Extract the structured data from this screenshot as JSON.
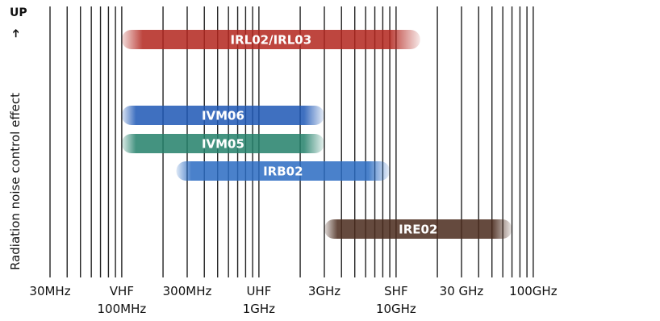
{
  "chart_data": {
    "type": "range-bar",
    "ylabel": "Radiation noise control effect",
    "up_label": "UP",
    "up_arrow": "➔",
    "x_scale": "log",
    "x_unit": "Hz",
    "xlim": [
      30000000,
      200000000000
    ],
    "tick_labels_row1": [
      {
        "label": "30MHz",
        "value": 30000000
      },
      {
        "label": "VHF",
        "value": 100000000
      },
      {
        "label": "300MHz",
        "value": 300000000
      },
      {
        "label": "UHF",
        "value": 1000000000
      },
      {
        "label": "3GHz",
        "value": 3000000000
      },
      {
        "label": "SHF",
        "value": 10000000000
      },
      {
        "label": "30 GHz",
        "value": 30000000000
      },
      {
        "label": "100GHz",
        "value": 100000000000
      }
    ],
    "tick_labels_row2": [
      {
        "label": "100MHz",
        "value": 100000000
      },
      {
        "label": "1GHz",
        "value": 1000000000
      },
      {
        "label": "10GHz",
        "value": 10000000000
      }
    ],
    "series": [
      {
        "name": "IRL02/IRL03",
        "start": 100000000,
        "end": 15000000000,
        "color": "#b2251d"
      },
      {
        "name": "IVM06",
        "start": 100000000,
        "end": 3000000000,
        "color": "#1d57b5"
      },
      {
        "name": "IVM05",
        "start": 100000000,
        "end": 3000000000,
        "color": "#23806a"
      },
      {
        "name": "IRB02",
        "start": 250000000,
        "end": 9000000000,
        "color": "#2a6bc2"
      },
      {
        "name": "IRE02",
        "start": 3000000000,
        "end": 70000000000,
        "color": "#4a2a1c"
      }
    ]
  }
}
